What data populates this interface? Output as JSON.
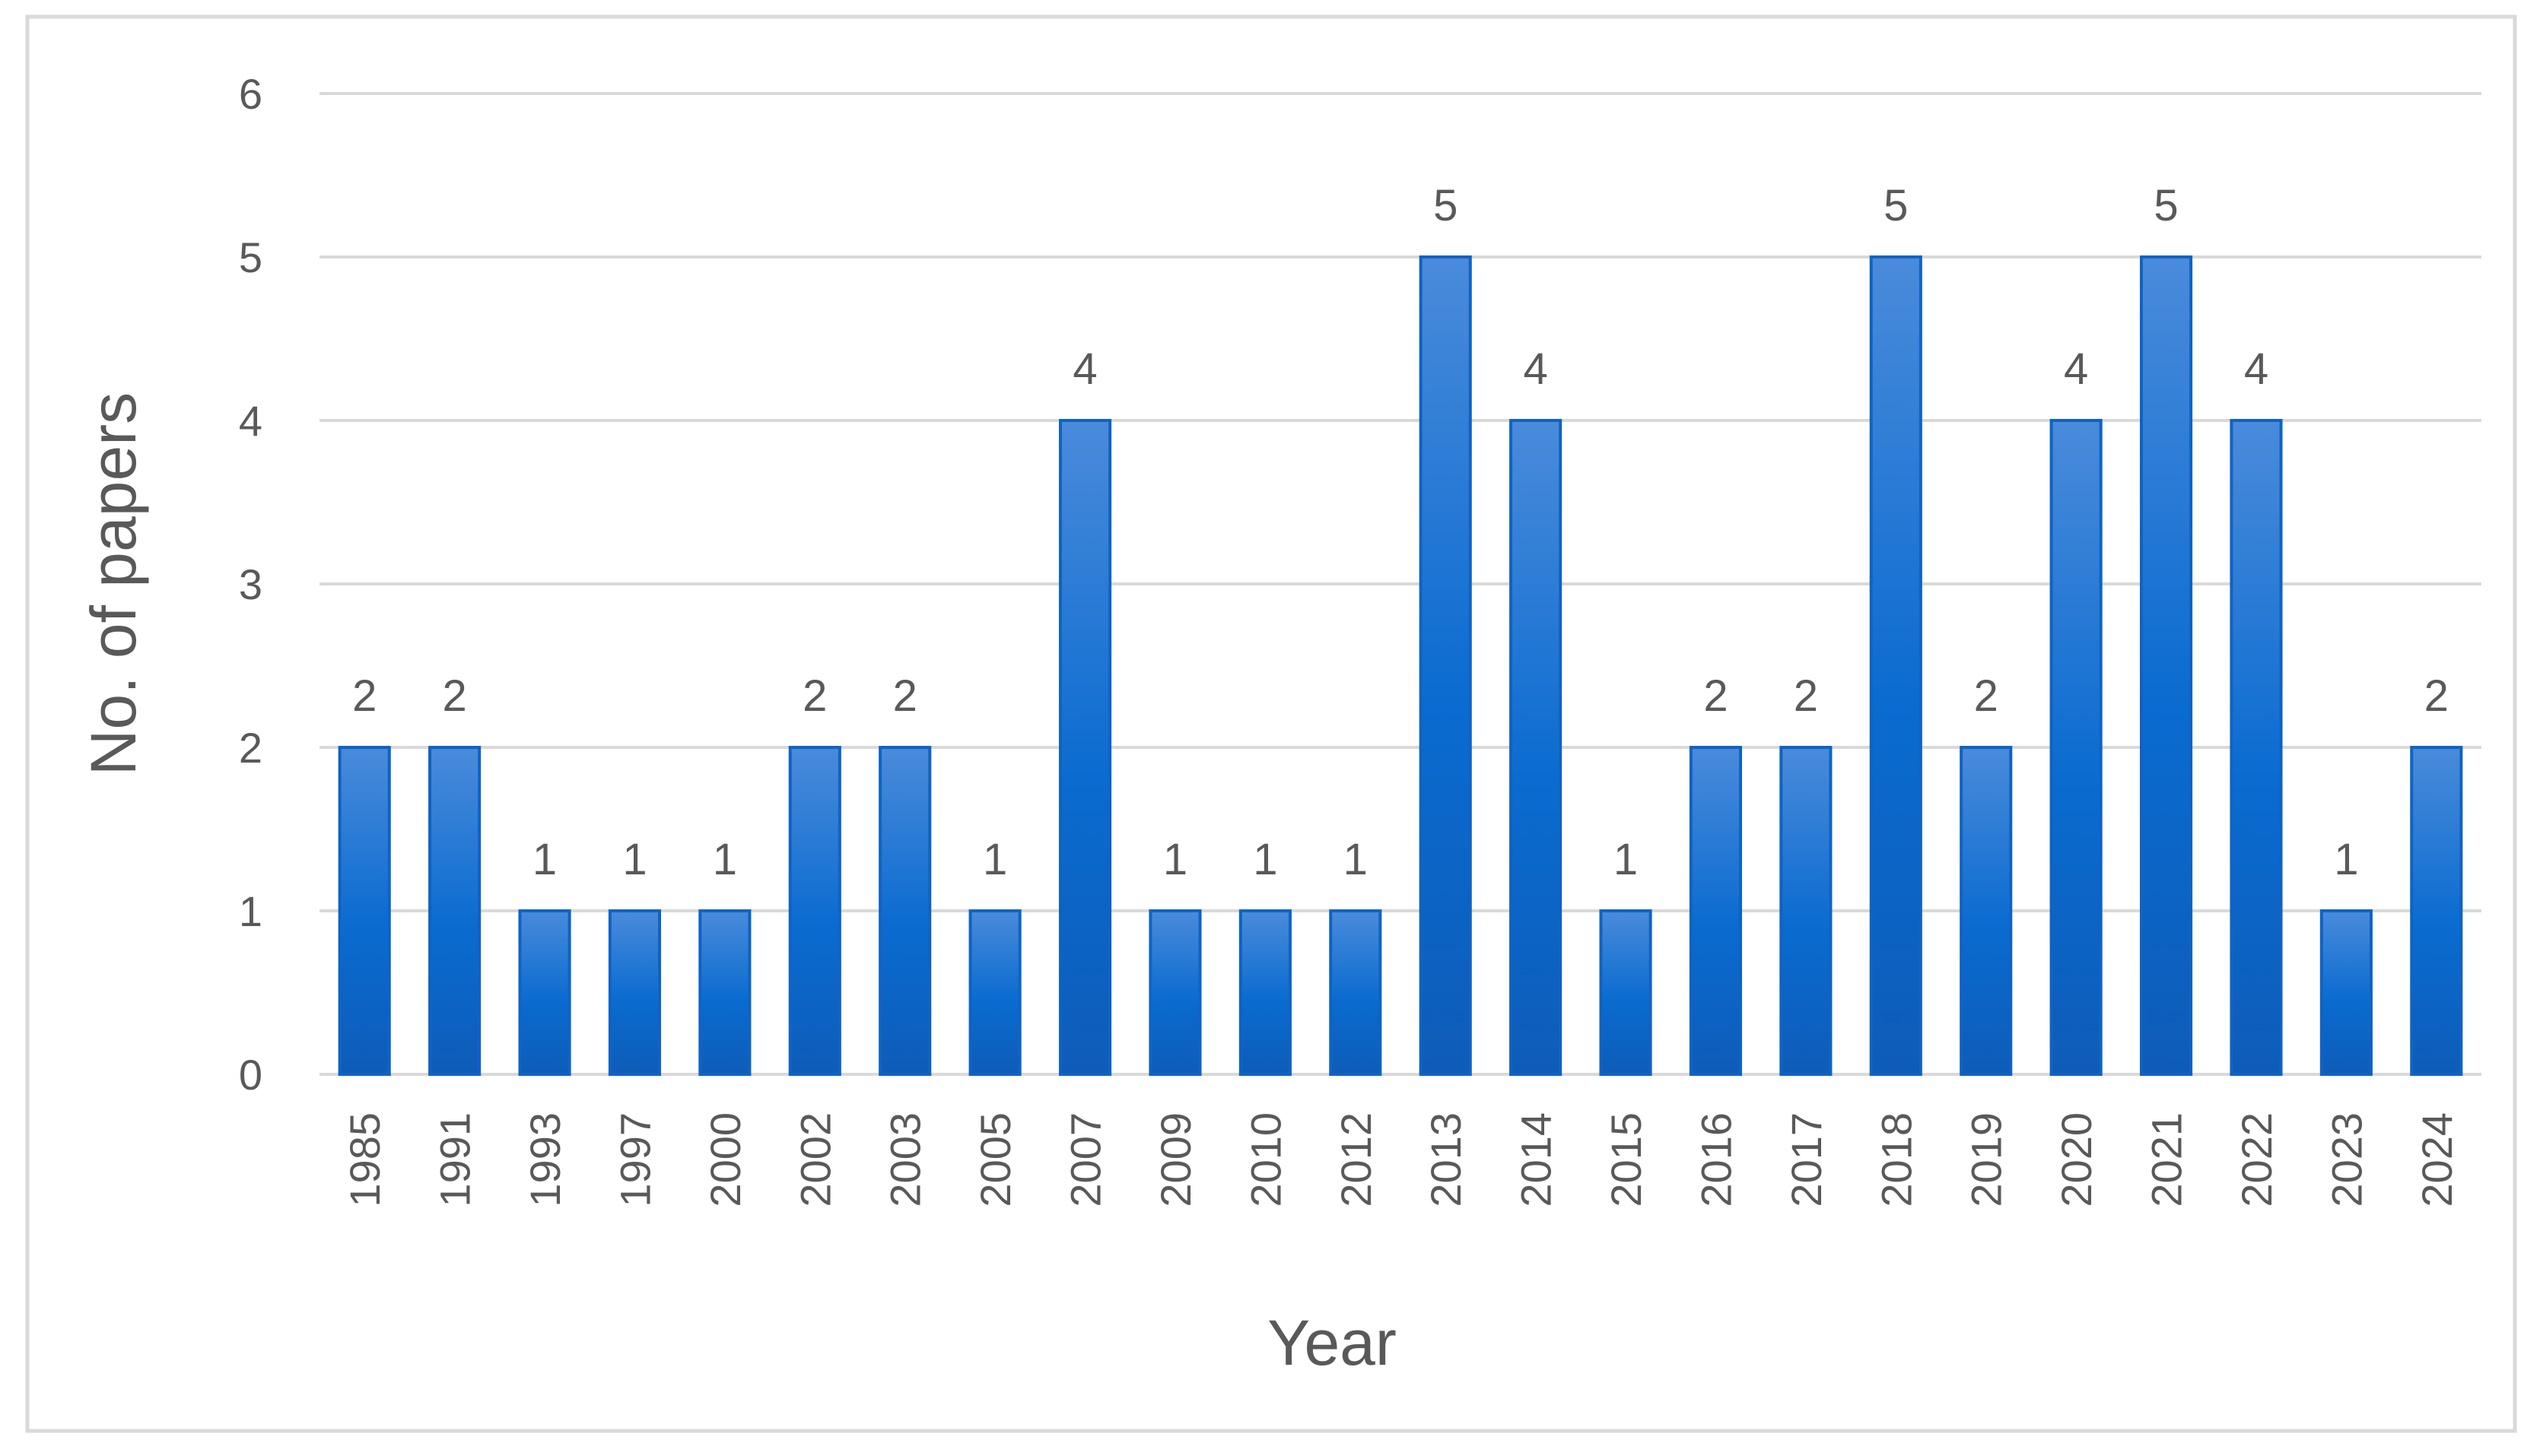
{
  "chart_data": {
    "type": "bar",
    "title": "",
    "xlabel": "Year",
    "ylabel": "No. of papers",
    "categories": [
      "1985",
      "1991",
      "1993",
      "1997",
      "2000",
      "2002",
      "2003",
      "2005",
      "2007",
      "2009",
      "2010",
      "2012",
      "2013",
      "2014",
      "2015",
      "2016",
      "2017",
      "2018",
      "2019",
      "2020",
      "2021",
      "2022",
      "2023",
      "2024"
    ],
    "values": [
      2,
      2,
      1,
      1,
      1,
      2,
      2,
      1,
      4,
      1,
      1,
      1,
      5,
      4,
      1,
      2,
      2,
      5,
      2,
      4,
      5,
      4,
      1,
      2
    ],
    "ylim": [
      0,
      6
    ],
    "yticks": [
      0,
      1,
      2,
      3,
      4,
      5,
      6
    ],
    "grid": true,
    "legend": "none",
    "data_labels": true,
    "colors": {
      "bar": "#0A6BD0",
      "bar_light": "#4A8BDB",
      "bar_dark": "#0E5CB8",
      "bar_edge": "#0F63C4",
      "grid": "#D9D9D9",
      "text": "#595959",
      "frame": "#D9D9D9"
    }
  }
}
